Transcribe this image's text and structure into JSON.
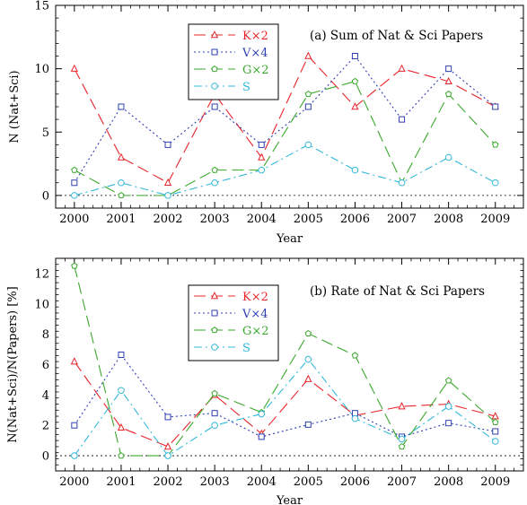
{
  "chart_data": [
    {
      "type": "line",
      "title": "(a) Sum of Nat & Sci Papers",
      "xlabel": "Year",
      "ylabel": "N (Nat+Sci)",
      "x": [
        2000,
        2001,
        2002,
        2003,
        2004,
        2005,
        2006,
        2007,
        2008,
        2009
      ],
      "xlim": [
        1999.6,
        2009.6
      ],
      "ylim": [
        -1,
        15
      ],
      "yticks": [
        0,
        5,
        10,
        15
      ],
      "zero_line": true,
      "legend_placement": "top-center",
      "series": [
        {
          "name": "K×2",
          "color": "#e8242a",
          "dash": "long-dash",
          "marker": "triangle",
          "values": [
            10,
            3,
            1,
            8,
            3,
            11,
            7,
            10,
            9,
            7
          ]
        },
        {
          "name": "V×4",
          "color": "#2f3fb0",
          "dash": "dotted",
          "marker": "square",
          "values": [
            1,
            7,
            4,
            7,
            4,
            7,
            11,
            6,
            10,
            7
          ]
        },
        {
          "name": "G×2",
          "color": "#3aa82c",
          "dash": "long-dash",
          "marker": "pentagon",
          "values": [
            2,
            0,
            0,
            2,
            2,
            8,
            9,
            1,
            8,
            4
          ]
        },
        {
          "name": "S",
          "color": "#33b8d8",
          "dash": "dash-dot",
          "marker": "circle",
          "values": [
            0,
            1,
            0,
            1,
            2,
            4,
            2,
            1,
            3,
            1
          ]
        }
      ]
    },
    {
      "type": "line",
      "title": "(b) Rate of Nat & Sci Papers",
      "xlabel": "Year",
      "ylabel": "N(Nat+Sci)/N(Papers)  [%]",
      "x": [
        2000,
        2001,
        2002,
        2003,
        2004,
        2005,
        2006,
        2007,
        2008,
        2009
      ],
      "xlim": [
        1999.6,
        2009.6
      ],
      "ylim": [
        -1,
        13
      ],
      "yticks": [
        0,
        2,
        4,
        6,
        8,
        10,
        12
      ],
      "zero_line": true,
      "legend_placement": "top-center",
      "series": [
        {
          "name": "K×2",
          "color": "#e8242a",
          "dash": "long-dash",
          "marker": "triangle",
          "values": [
            6.2,
            1.85,
            0.6,
            4.0,
            1.45,
            5.05,
            2.65,
            3.25,
            3.4,
            2.6
          ]
        },
        {
          "name": "V×4",
          "color": "#2f3fb0",
          "dash": "dotted",
          "marker": "square",
          "values": [
            2.0,
            6.65,
            2.55,
            2.8,
            1.25,
            2.05,
            2.8,
            1.25,
            2.15,
            1.6
          ]
        },
        {
          "name": "G×2",
          "color": "#3aa82c",
          "dash": "long-dash",
          "marker": "pentagon",
          "values": [
            12.5,
            0,
            0,
            4.1,
            2.85,
            8.05,
            6.6,
            0.6,
            4.95,
            2.2
          ]
        },
        {
          "name": "S",
          "color": "#33b8d8",
          "dash": "dash-dot",
          "marker": "circle",
          "values": [
            0,
            4.3,
            0,
            2.0,
            2.75,
            6.35,
            2.45,
            1.1,
            3.25,
            0.95
          ]
        }
      ]
    }
  ]
}
